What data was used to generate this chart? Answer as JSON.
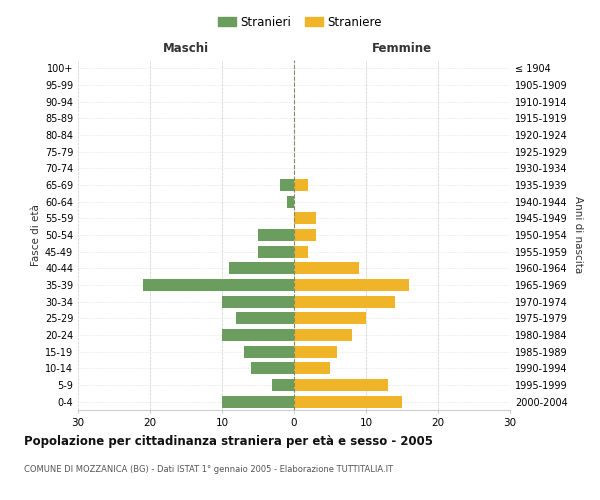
{
  "age_groups": [
    "0-4",
    "5-9",
    "10-14",
    "15-19",
    "20-24",
    "25-29",
    "30-34",
    "35-39",
    "40-44",
    "45-49",
    "50-54",
    "55-59",
    "60-64",
    "65-69",
    "70-74",
    "75-79",
    "80-84",
    "85-89",
    "90-94",
    "95-99",
    "100+"
  ],
  "birth_years": [
    "2000-2004",
    "1995-1999",
    "1990-1994",
    "1985-1989",
    "1980-1984",
    "1975-1979",
    "1970-1974",
    "1965-1969",
    "1960-1964",
    "1955-1959",
    "1950-1954",
    "1945-1949",
    "1940-1944",
    "1935-1939",
    "1930-1934",
    "1925-1929",
    "1920-1924",
    "1915-1919",
    "1910-1914",
    "1905-1909",
    "≤ 1904"
  ],
  "males": [
    10,
    3,
    6,
    7,
    10,
    8,
    10,
    21,
    9,
    5,
    5,
    0,
    1,
    2,
    0,
    0,
    0,
    0,
    0,
    0,
    0
  ],
  "females": [
    15,
    13,
    5,
    6,
    8,
    10,
    14,
    16,
    9,
    2,
    3,
    3,
    0,
    2,
    0,
    0,
    0,
    0,
    0,
    0,
    0
  ],
  "male_color": "#6b9e5e",
  "female_color": "#f0b429",
  "title": "Popolazione per cittadinanza straniera per età e sesso - 2005",
  "subtitle": "COMUNE DI MOZZANICA (BG) - Dati ISTAT 1° gennaio 2005 - Elaborazione TUTTITALIA.IT",
  "xlabel_left": "Maschi",
  "xlabel_right": "Femmine",
  "ylabel_left": "Fasce di età",
  "ylabel_right": "Anni di nascita",
  "legend_male": "Stranieri",
  "legend_female": "Straniere",
  "xlim": 30,
  "background_color": "#ffffff",
  "grid_color": "#cccccc"
}
